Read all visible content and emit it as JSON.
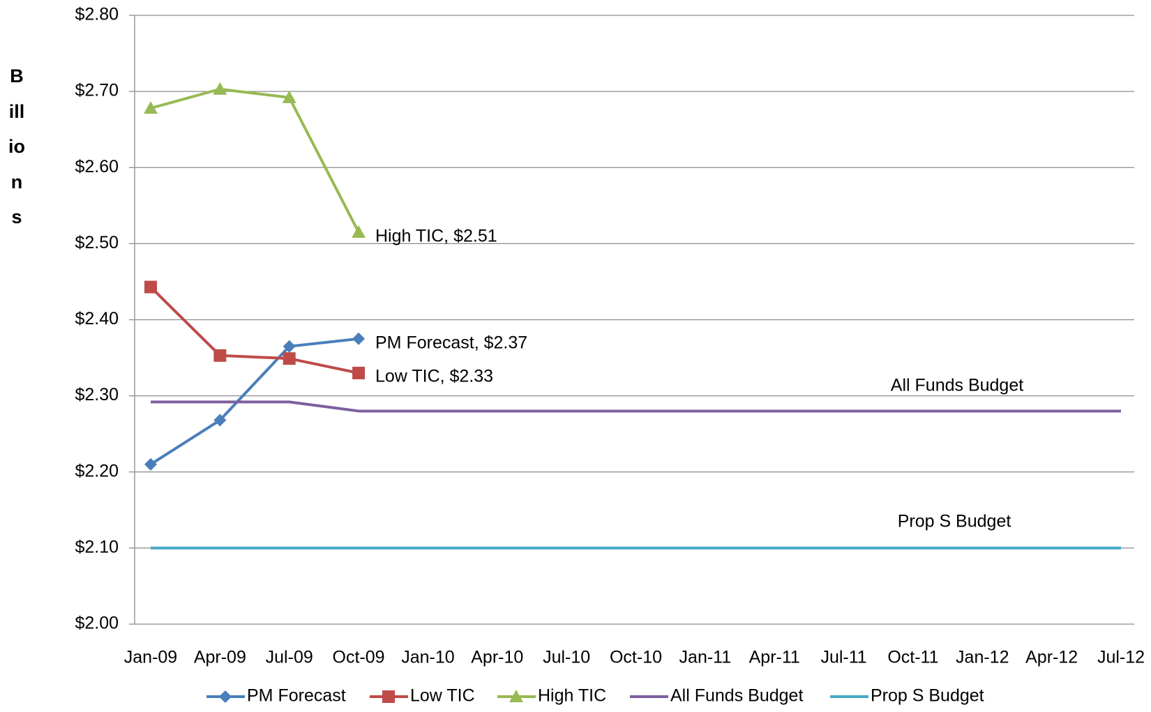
{
  "chart_data": {
    "type": "line",
    "y_label": "Billions",
    "categories": [
      "Jan-09",
      "Apr-09",
      "Jul-09",
      "Oct-09",
      "Jan-10",
      "Apr-10",
      "Jul-10",
      "Oct-10",
      "Jan-11",
      "Apr-11",
      "Jul-11",
      "Oct-11",
      "Jan-12",
      "Apr-12",
      "Jul-12"
    ],
    "series": [
      {
        "name": "PM Forecast",
        "color": "#4a7ebb",
        "marker": "diamond",
        "values": [
          2.21,
          2.268,
          2.365,
          2.375,
          null,
          null,
          null,
          null,
          null,
          null,
          null,
          null,
          null,
          null,
          null
        ]
      },
      {
        "name": "Low TIC",
        "color": "#be4b48",
        "marker": "square",
        "values": [
          2.443,
          2.353,
          2.349,
          2.33,
          null,
          null,
          null,
          null,
          null,
          null,
          null,
          null,
          null,
          null,
          null
        ]
      },
      {
        "name": "High TIC",
        "color": "#98b954",
        "marker": "triangle",
        "values": [
          2.678,
          2.703,
          2.692,
          2.515,
          null,
          null,
          null,
          null,
          null,
          null,
          null,
          null,
          null,
          null,
          null
        ]
      },
      {
        "name": "All Funds Budget",
        "color": "#7d60a0",
        "marker": "none",
        "values": [
          2.292,
          2.292,
          2.292,
          2.28,
          2.28,
          2.28,
          2.28,
          2.28,
          2.28,
          2.28,
          2.28,
          2.28,
          2.28,
          2.28,
          2.28
        ]
      },
      {
        "name": "Prop S Budget",
        "color": "#46aac5",
        "marker": "none",
        "values": [
          2.1,
          2.1,
          2.1,
          2.1,
          2.1,
          2.1,
          2.1,
          2.1,
          2.1,
          2.1,
          2.1,
          2.1,
          2.1,
          2.1,
          2.1
        ]
      }
    ],
    "annotations": [
      "High TIC, $2.51",
      "PM Forecast, $2.37",
      "Low TIC, $2.33",
      "All Funds Budget",
      "Prop S Budget"
    ],
    "ylim": [
      2.0,
      2.8
    ],
    "yticks": [
      {
        "value": 2.0,
        "label": "$2.00"
      },
      {
        "value": 2.1,
        "label": "$2.10"
      },
      {
        "value": 2.2,
        "label": "$2.20"
      },
      {
        "value": 2.3,
        "label": "$2.30"
      },
      {
        "value": 2.4,
        "label": "$2.40"
      },
      {
        "value": 2.5,
        "label": "$2.50"
      },
      {
        "value": 2.6,
        "label": "$2.60"
      },
      {
        "value": 2.7,
        "label": "$2.70"
      },
      {
        "value": 2.8,
        "label": "$2.80"
      }
    ],
    "grid": true,
    "legend": "bottom"
  }
}
